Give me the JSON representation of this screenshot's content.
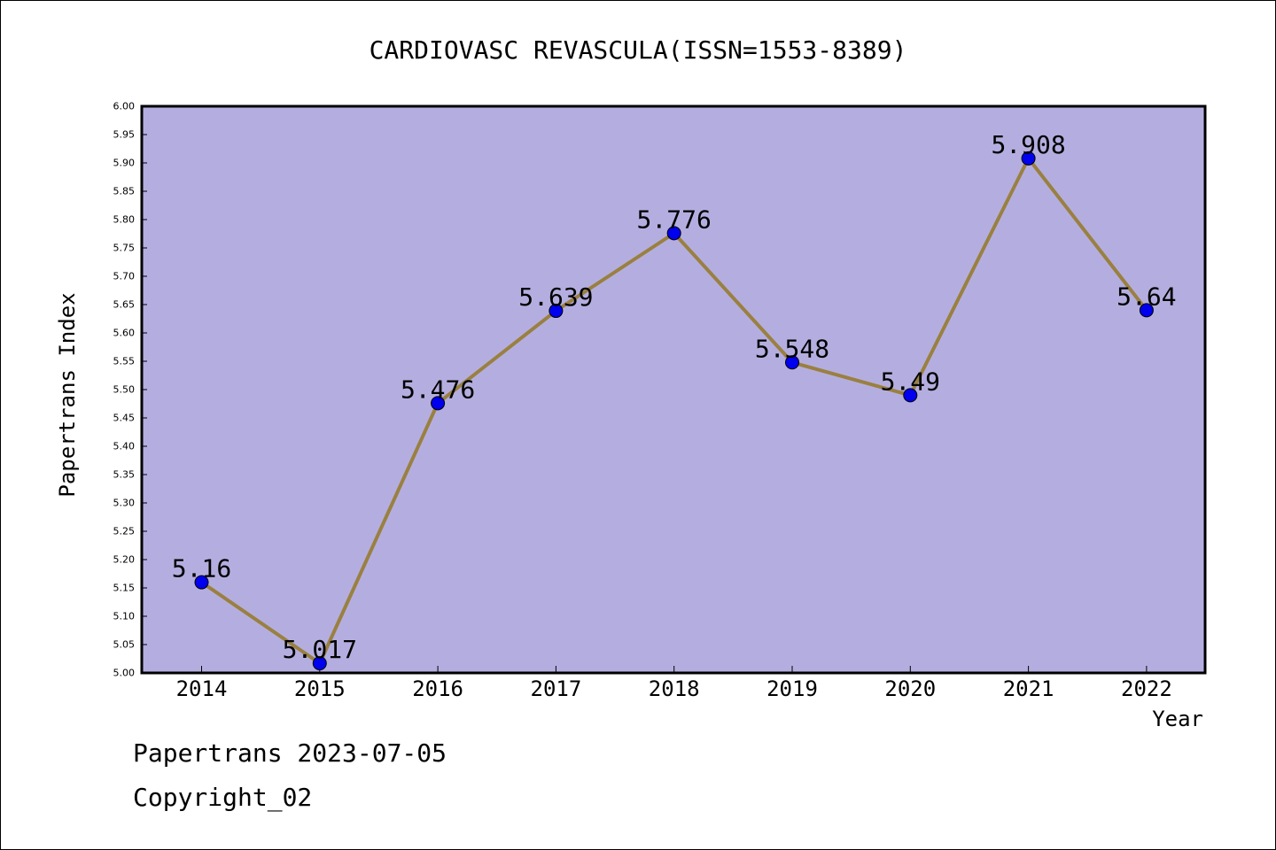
{
  "chart_data": {
    "type": "line",
    "title": "CARDIOVASC REVASCULA(ISSN=1553-8389)",
    "xlabel": "Year",
    "ylabel": "Papertrans Index",
    "categories": [
      "2014",
      "2015",
      "2016",
      "2017",
      "2018",
      "2019",
      "2020",
      "2021",
      "2022"
    ],
    "values": [
      5.16,
      5.017,
      5.476,
      5.639,
      5.776,
      5.548,
      5.49,
      5.908,
      5.64
    ],
    "value_labels": [
      "5.16",
      "5.017",
      "5.476",
      "5.639",
      "5.776",
      "5.548",
      "5.49",
      "5.908",
      "5.64"
    ],
    "ylim": [
      5.0,
      6.0
    ],
    "yticks": [
      "5.00",
      "5.05",
      "5.10",
      "5.15",
      "5.20",
      "5.25",
      "5.30",
      "5.35",
      "5.40",
      "5.45",
      "5.50",
      "5.55",
      "5.60",
      "5.65",
      "5.70",
      "5.75",
      "5.80",
      "5.85",
      "5.90",
      "5.95",
      "6.00"
    ],
    "grid": false,
    "colors": {
      "plot_background": "#b4aee0",
      "line": "#9a8040",
      "marker": "#0000ee"
    }
  },
  "footer": {
    "line1": "Papertrans 2023-07-05",
    "line2": "Copyright_02"
  }
}
